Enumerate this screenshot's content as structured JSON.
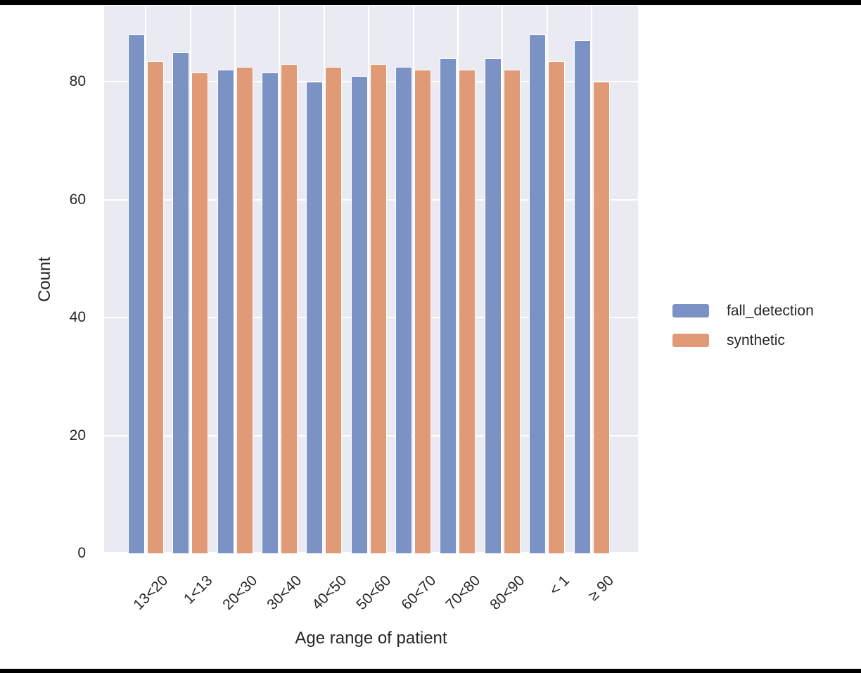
{
  "chart_data": {
    "type": "bar",
    "title": "",
    "xlabel": "Age range of patient",
    "ylabel": "Count",
    "categories": [
      "13<20",
      "1<13",
      "20<30",
      "30<40",
      "40<50",
      "50<60",
      "60<70",
      "70<80",
      "80<90",
      "< 1",
      "≥ 90"
    ],
    "series": [
      {
        "name": "fall_detection",
        "color": "#7b93c4",
        "values": [
          88,
          85,
          82,
          81.5,
          80,
          81,
          82.5,
          84,
          84,
          88,
          87
        ]
      },
      {
        "name": "synthetic",
        "color": "#e09b76",
        "values": [
          83.5,
          81.5,
          82.5,
          83,
          82.5,
          83,
          82,
          82,
          82,
          83.5,
          80
        ]
      }
    ],
    "yticks": [
      0,
      20,
      40,
      60,
      80
    ],
    "ylim": [
      0,
      92.9
    ],
    "grid": true,
    "legend_position": "right-outside-center",
    "plot_background": "#eaeaf2",
    "gridline_color": "#ffffff",
    "text_color": "#262626"
  }
}
